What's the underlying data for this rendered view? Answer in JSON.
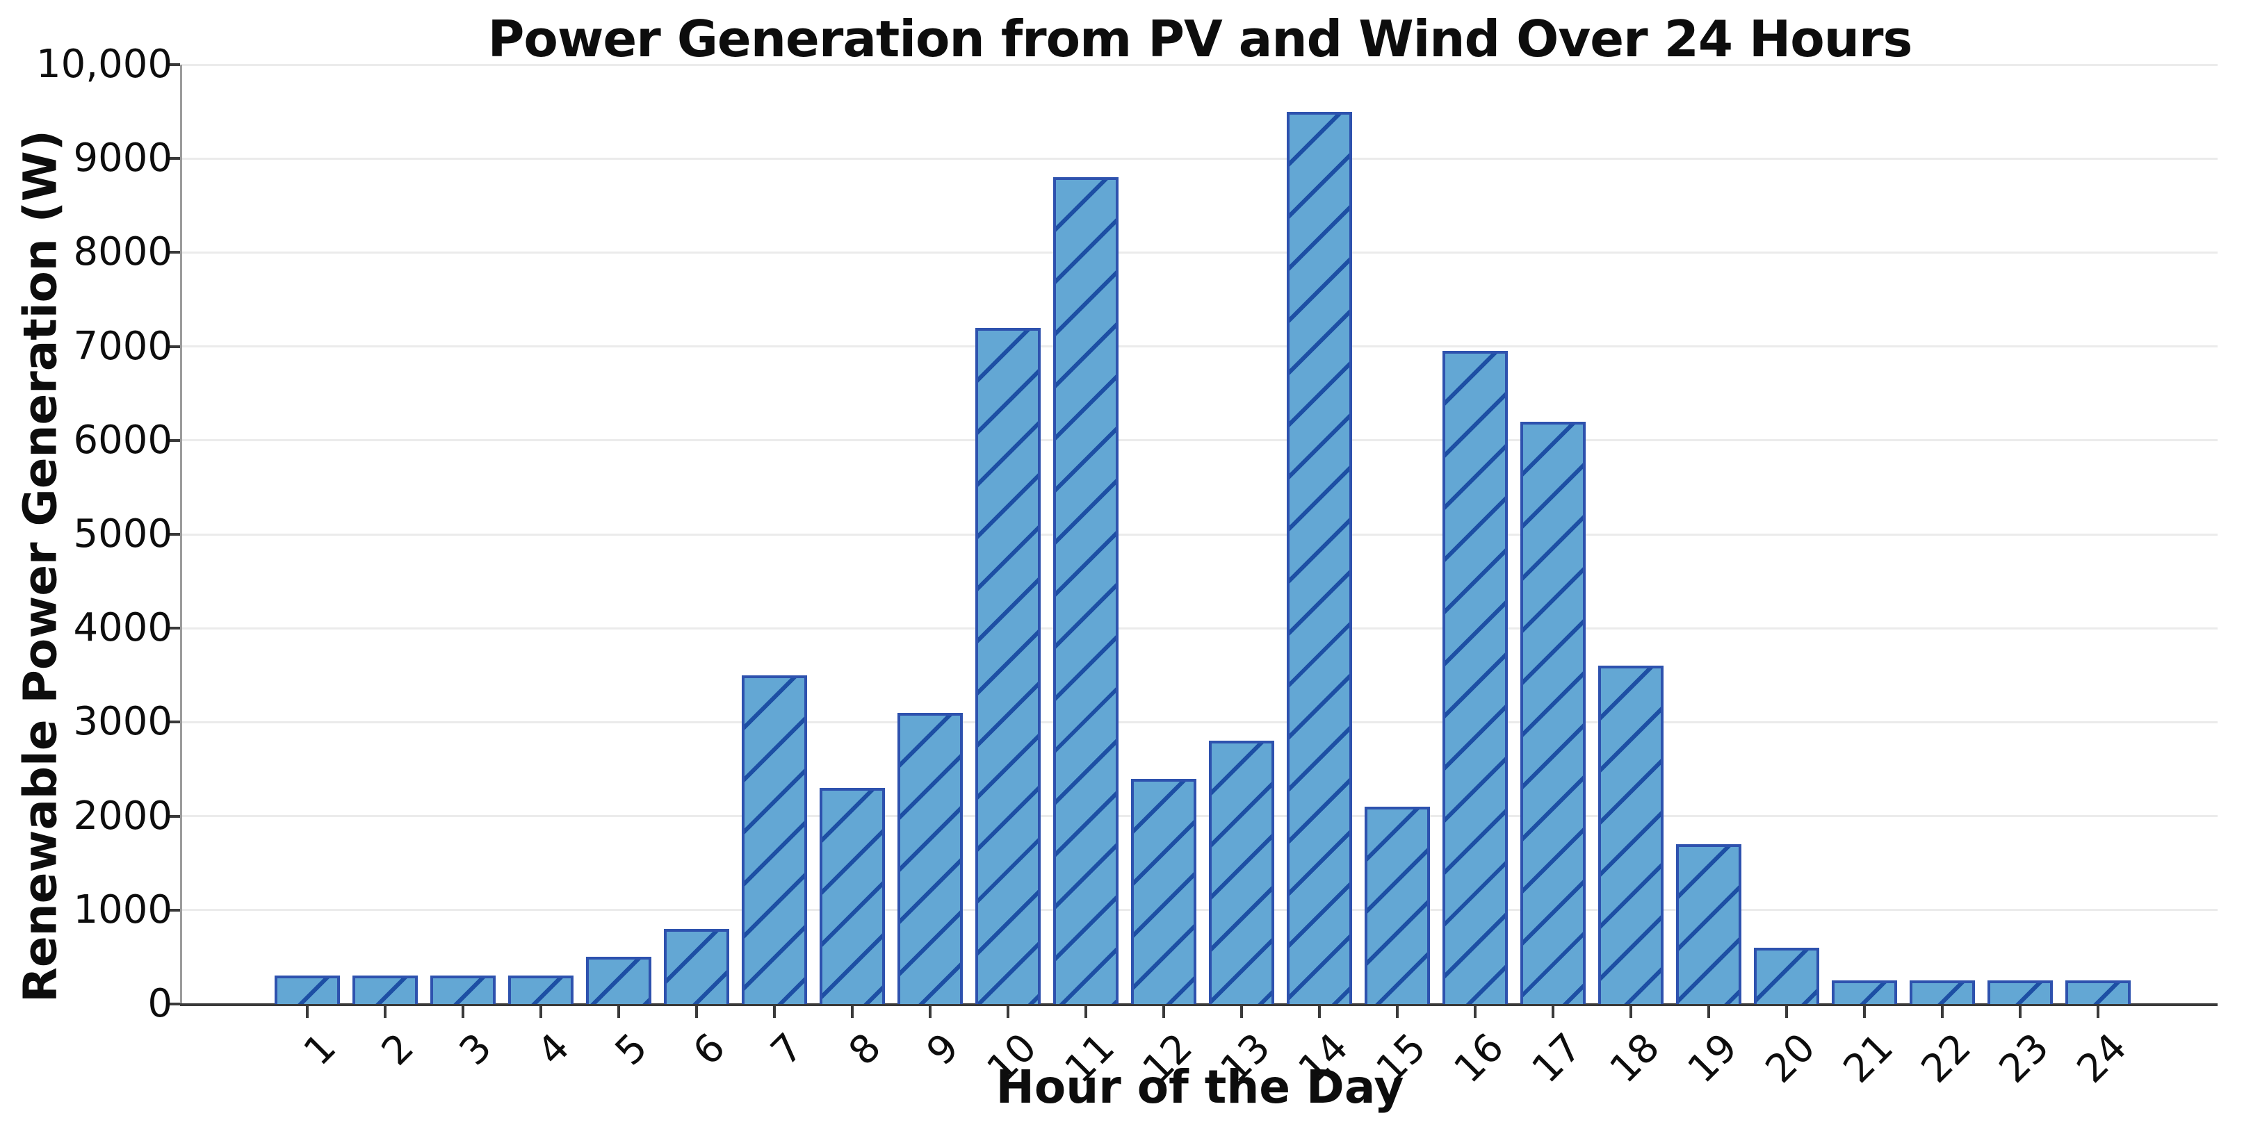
{
  "chart_data": {
    "type": "bar",
    "title": "Power Generation from PV and Wind Over 24 Hours",
    "xlabel": "Hour of the Day",
    "ylabel": "Renewable Power Generation (W)",
    "categories": [
      "1",
      "2",
      "3",
      "4",
      "5",
      "6",
      "7",
      "8",
      "9",
      "10",
      "11",
      "12",
      "13",
      "14",
      "15",
      "16",
      "17",
      "18",
      "19",
      "20",
      "21",
      "22",
      "23",
      "24"
    ],
    "values": [
      300,
      300,
      300,
      300,
      500,
      800,
      3500,
      2300,
      3100,
      7200,
      8800,
      2400,
      2800,
      9500,
      2100,
      6950,
      6200,
      3600,
      1700,
      600,
      250,
      250,
      250,
      250
    ],
    "ylim": [
      0,
      10000
    ],
    "ytick_values": [
      0,
      1000,
      2000,
      3000,
      4000,
      5000,
      6000,
      7000,
      8000,
      9000,
      10000
    ],
    "ytick_labels": [
      "0",
      "1000",
      "2000",
      "3000",
      "4000",
      "5000",
      "6000",
      "7000",
      "8000",
      "9000",
      "10,000"
    ],
    "grid": "horizontal",
    "legend": "none",
    "hatch": "/"
  },
  "colors": {
    "bar_fill": "#63a7d4",
    "bar_edge": "#2e52ae",
    "hatch": "#1d4fa4",
    "grid": "#ebebeb",
    "axis": "#3a3a3a",
    "left_spine": "#9b9b9b",
    "text": "#0d0d0d",
    "background": "#ffffff"
  }
}
